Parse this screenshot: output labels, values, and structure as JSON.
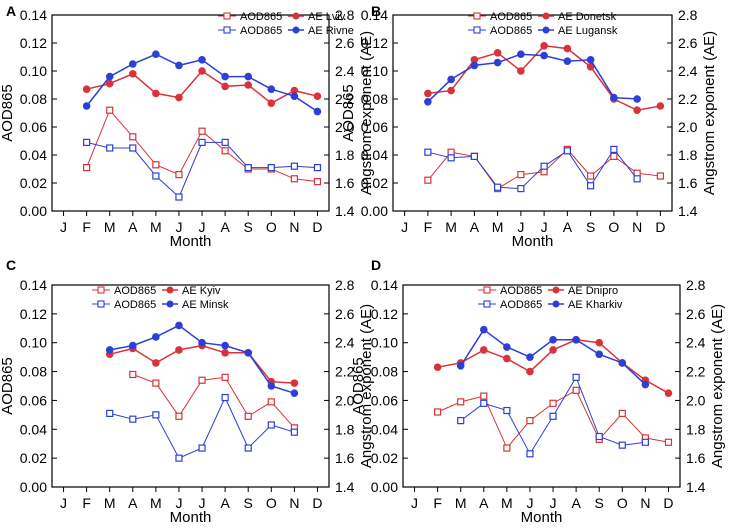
{
  "colors": {
    "red": "#d9323a",
    "blue": "#2c3fd6",
    "axis": "#000000"
  },
  "chart_data": [
    {
      "type": "line",
      "panel_label": "A",
      "months": [
        "J",
        "F",
        "M",
        "A",
        "M",
        "J",
        "J",
        "A",
        "S",
        "O",
        "N",
        "D"
      ],
      "xlabel": "Month",
      "ylabel": "AOD865",
      "y2label": "Angstrom exponent (AE)",
      "ylim": [
        0,
        0.14
      ],
      "y2lim": [
        1.4,
        2.8
      ],
      "yticks": [
        "0.00",
        "0.02",
        "0.04",
        "0.06",
        "0.08",
        "0.10",
        "0.12",
        "0.14"
      ],
      "y2ticks": [
        "1.4",
        "1.6",
        "1.8",
        "2.0",
        "2.2",
        "2.4",
        "2.6",
        "2.8"
      ],
      "legend": {
        "aod_labels": [
          "AOD865",
          "AOD865"
        ],
        "ae_labels": [
          "AE  Lviv",
          "AE  Rivne"
        ]
      },
      "series": [
        {
          "name": "AOD865 Lviv",
          "axis": "left",
          "marker": "open",
          "color": "red",
          "start_month": 2,
          "values": [
            0.031,
            0.072,
            0.053,
            0.033,
            0.026,
            0.057,
            0.043,
            0.03,
            0.03,
            0.023,
            0.021
          ]
        },
        {
          "name": "AOD865 Rivne",
          "axis": "left",
          "marker": "open",
          "color": "blue",
          "start_month": 2,
          "values": [
            0.049,
            0.045,
            0.045,
            0.025,
            0.01,
            0.049,
            0.049,
            0.031,
            0.031,
            0.032,
            0.031
          ]
        },
        {
          "name": "AE Lviv",
          "axis": "right",
          "marker": "filled",
          "color": "red",
          "start_month": 2,
          "values": [
            2.27,
            2.31,
            2.38,
            2.24,
            2.21,
            2.4,
            2.29,
            2.3,
            2.17,
            2.26,
            2.22
          ]
        },
        {
          "name": "AE Rivne",
          "axis": "right",
          "marker": "filled",
          "color": "blue",
          "start_month": 2,
          "values": [
            2.15,
            2.36,
            2.45,
            2.52,
            2.44,
            2.48,
            2.36,
            2.36,
            2.27,
            2.22,
            2.11
          ]
        }
      ]
    },
    {
      "type": "line",
      "panel_label": "B",
      "months": [
        "J",
        "F",
        "M",
        "A",
        "M",
        "J",
        "J",
        "A",
        "S",
        "O",
        "N",
        "D"
      ],
      "xlabel": "Month",
      "ylabel": "AOD865",
      "y2label": "Angstrom exponent (AE)",
      "ylim": [
        0,
        0.14
      ],
      "y2lim": [
        1.4,
        2.8
      ],
      "yticks": [
        "0.00",
        "0.02",
        "0.04",
        "0.06",
        "0.08",
        "0.10",
        "0.12",
        "0.14"
      ],
      "y2ticks": [
        "1.4",
        "1.6",
        "1.8",
        "2.0",
        "2.2",
        "2.4",
        "2.6",
        "2.8"
      ],
      "legend": {
        "aod_labels": [
          "AOD865",
          "AOD865"
        ],
        "ae_labels": [
          "AE Donetsk",
          "AE Lugansk"
        ]
      },
      "series": [
        {
          "name": "AOD865 Donetsk",
          "axis": "left",
          "marker": "open",
          "color": "red",
          "start_month": 2,
          "values": [
            0.022,
            0.042,
            0.039,
            0.016,
            0.026,
            0.028,
            0.044,
            0.025,
            0.039,
            0.027,
            0.025
          ]
        },
        {
          "name": "AOD865 Lugansk",
          "axis": "left",
          "marker": "open",
          "color": "blue",
          "start_month": 2,
          "values": [
            0.042,
            0.038,
            0.039,
            0.017,
            0.016,
            0.032,
            0.043,
            0.018,
            0.044,
            0.023
          ]
        },
        {
          "name": "AE Donetsk",
          "axis": "right",
          "marker": "filled",
          "color": "red",
          "start_month": 2,
          "values": [
            2.24,
            2.26,
            2.48,
            2.53,
            2.4,
            2.58,
            2.56,
            2.43,
            2.2,
            2.12,
            2.15
          ]
        },
        {
          "name": "AE Lugansk",
          "axis": "right",
          "marker": "filled",
          "color": "blue",
          "start_month": 2,
          "values": [
            2.18,
            2.34,
            2.44,
            2.46,
            2.52,
            2.51,
            2.47,
            2.48,
            2.21,
            2.2
          ]
        }
      ]
    },
    {
      "type": "line",
      "panel_label": "C",
      "months": [
        "J",
        "F",
        "M",
        "A",
        "M",
        "J",
        "J",
        "A",
        "S",
        "O",
        "N",
        "D"
      ],
      "xlabel": "Month",
      "ylabel": "AOD865",
      "y2label": "Angstrom exponent (AE)",
      "ylim": [
        0,
        0.14
      ],
      "y2lim": [
        1.4,
        2.8
      ],
      "yticks": [
        "0.00",
        "0.02",
        "0.04",
        "0.06",
        "0.08",
        "0.10",
        "0.12",
        "0.14"
      ],
      "y2ticks": [
        "1.4",
        "1.6",
        "1.8",
        "2.0",
        "2.2",
        "2.4",
        "2.6",
        "2.8"
      ],
      "legend": {
        "aod_labels": [
          "AOD865",
          "AOD865"
        ],
        "ae_labels": [
          "AE  Kyiv",
          "AE  Minsk"
        ]
      },
      "series": [
        {
          "name": "AOD865 Kyiv",
          "axis": "left",
          "marker": "open",
          "color": "red",
          "start_month": 4,
          "values": [
            0.078,
            0.072,
            0.049,
            0.074,
            0.076,
            0.049,
            0.059,
            0.041
          ]
        },
        {
          "name": "AOD865 Minsk",
          "axis": "left",
          "marker": "open",
          "color": "blue",
          "start_month": 3,
          "values": [
            0.051,
            0.047,
            0.05,
            0.02,
            0.027,
            0.062,
            0.027,
            0.043,
            0.038
          ]
        },
        {
          "name": "AE Kyiv",
          "axis": "right",
          "marker": "filled",
          "color": "red",
          "start_month": 3,
          "values": [
            2.32,
            2.36,
            2.26,
            2.35,
            2.38,
            2.33,
            2.33,
            2.13,
            2.12
          ]
        },
        {
          "name": "AE Minsk",
          "axis": "right",
          "marker": "filled",
          "color": "blue",
          "start_month": 3,
          "values": [
            2.35,
            2.38,
            2.44,
            2.52,
            2.4,
            2.38,
            2.33,
            2.1,
            2.05
          ]
        }
      ]
    },
    {
      "type": "line",
      "panel_label": "D",
      "months": [
        "J",
        "F",
        "M",
        "A",
        "M",
        "J",
        "J",
        "A",
        "S",
        "O",
        "N",
        "D"
      ],
      "xlabel": "Month",
      "ylabel": "AOD865",
      "y2label": "Angstrom exponent (AE)",
      "ylim": [
        0,
        0.14
      ],
      "y2lim": [
        1.4,
        2.8
      ],
      "yticks": [
        "0.00",
        "0.02",
        "0.04",
        "0.06",
        "0.08",
        "0.10",
        "0.12",
        "0.14"
      ],
      "y2ticks": [
        "1.4",
        "1.6",
        "1.8",
        "2.0",
        "2.2",
        "2.4",
        "2.6",
        "2.8"
      ],
      "legend": {
        "aod_labels": [
          "AOD865",
          "AOD865"
        ],
        "ae_labels": [
          "AE  Dnipro",
          "AE  Kharkiv"
        ]
      },
      "series": [
        {
          "name": "AOD865 Dnipro",
          "axis": "left",
          "marker": "open",
          "color": "red",
          "start_month": 2,
          "values": [
            0.052,
            0.059,
            0.063,
            0.027,
            0.046,
            0.058,
            0.067,
            0.033,
            0.051,
            0.034,
            0.031
          ]
        },
        {
          "name": "AOD865 Kharkiv",
          "axis": "left",
          "marker": "open",
          "color": "blue",
          "start_month": 3,
          "values": [
            0.046,
            0.058,
            0.053,
            0.023,
            0.049,
            0.076,
            0.035,
            0.029,
            0.031
          ]
        },
        {
          "name": "AE Dnipro",
          "axis": "right",
          "marker": "filled",
          "color": "red",
          "start_month": 2,
          "values": [
            2.23,
            2.26,
            2.35,
            2.29,
            2.2,
            2.35,
            2.42,
            2.4,
            2.26,
            2.14,
            2.05
          ]
        },
        {
          "name": "AE Kharkiv",
          "axis": "right",
          "marker": "filled",
          "color": "blue",
          "start_month": 3,
          "values": [
            2.24,
            2.49,
            2.37,
            2.3,
            2.42,
            2.42,
            2.32,
            2.26,
            2.11
          ]
        }
      ]
    }
  ]
}
